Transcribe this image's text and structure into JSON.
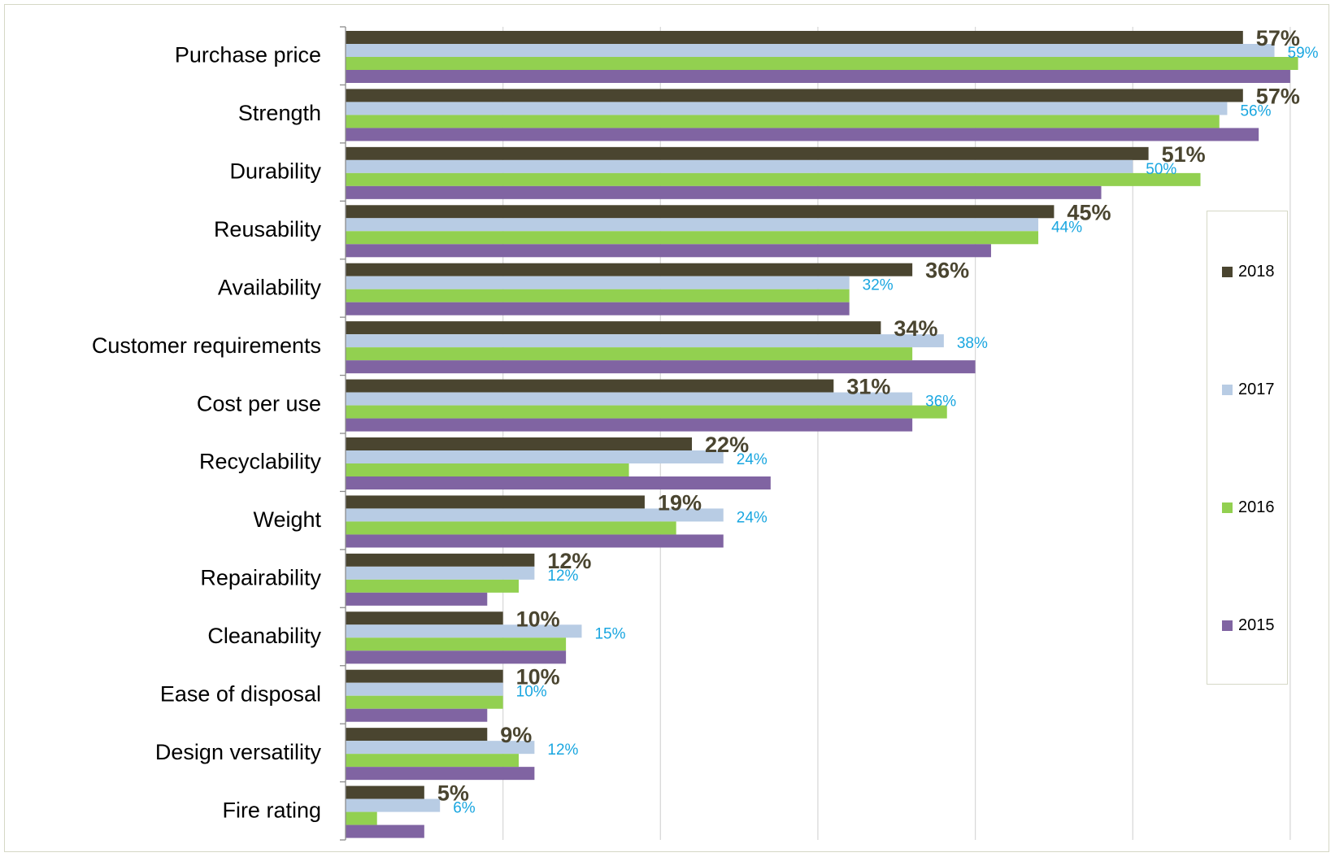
{
  "chart_data": {
    "type": "bar",
    "orientation": "horizontal",
    "xlim": [
      0,
      63
    ],
    "grid": true,
    "legend_position": "right",
    "categories": [
      "Purchase price",
      "Strength",
      "Durability",
      "Reusability",
      "Availability",
      "Customer requirements",
      "Cost per use",
      "Recyclability",
      "Weight",
      "Repairability",
      "Cleanability",
      "Ease of disposal",
      "Design versatility",
      "Fire rating"
    ],
    "series": [
      {
        "name": "2018",
        "color": "#4a4530",
        "values": [
          57,
          57,
          51,
          45,
          36,
          34,
          31,
          22,
          19,
          12,
          10,
          10,
          9,
          5
        ],
        "labels": [
          "57%",
          "57%",
          "51%",
          "45%",
          "36%",
          "34%",
          "31%",
          "22%",
          "19%",
          "12%",
          "10%",
          "10%",
          "9%",
          "5%"
        ]
      },
      {
        "name": "2017",
        "color": "#b8cce4",
        "values": [
          59,
          56,
          50,
          44,
          32,
          38,
          36,
          24,
          24,
          12,
          15,
          10,
          12,
          6
        ],
        "labels": [
          "59%",
          "56%",
          "50%",
          "44%",
          "32%",
          "38%",
          "36%",
          "24%",
          "24%",
          "12%",
          "15%",
          "10%",
          "12%",
          "6%"
        ]
      },
      {
        "name": "2016",
        "color": "#92d050",
        "values": [
          60.5,
          55.5,
          54.3,
          44,
          32,
          36,
          38.2,
          18,
          21,
          11,
          14,
          10,
          11,
          2
        ]
      },
      {
        "name": "2015",
        "color": "#8064a2",
        "values": [
          60,
          58,
          48,
          41,
          32,
          40,
          36,
          27,
          24,
          9,
          14,
          9,
          12,
          5
        ]
      }
    ]
  },
  "legend": {
    "items": [
      {
        "label": "2018",
        "color": "#4a4530"
      },
      {
        "label": "2017",
        "color": "#b8cce4"
      },
      {
        "label": "2016",
        "color": "#92d050"
      },
      {
        "label": "2015",
        "color": "#8064a2"
      }
    ]
  }
}
